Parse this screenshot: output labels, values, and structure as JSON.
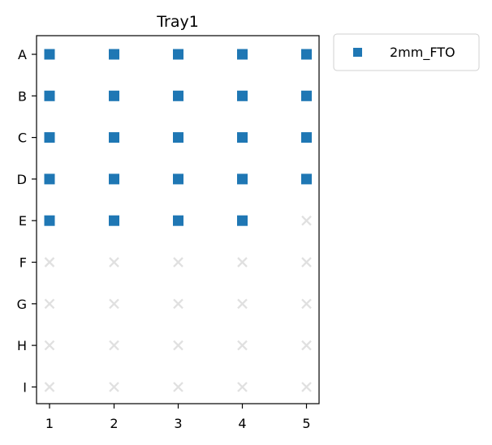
{
  "chart_data": {
    "type": "scatter",
    "title": "Tray1",
    "xlabel": "",
    "ylabel": "",
    "x_ticks": [
      "1",
      "2",
      "3",
      "4",
      "5"
    ],
    "y_ticks": [
      "A",
      "B",
      "C",
      "D",
      "E",
      "F",
      "G",
      "H",
      "I"
    ],
    "xlim": [
      0.83,
      5.2
    ],
    "grid": false,
    "legend_position": "outside-top-right",
    "series": [
      {
        "name": "2mm_FTO",
        "marker": "square",
        "color": "#1f77b4",
        "points": [
          {
            "x": 1,
            "y": "A"
          },
          {
            "x": 2,
            "y": "A"
          },
          {
            "x": 3,
            "y": "A"
          },
          {
            "x": 4,
            "y": "A"
          },
          {
            "x": 5,
            "y": "A"
          },
          {
            "x": 1,
            "y": "B"
          },
          {
            "x": 2,
            "y": "B"
          },
          {
            "x": 3,
            "y": "B"
          },
          {
            "x": 4,
            "y": "B"
          },
          {
            "x": 5,
            "y": "B"
          },
          {
            "x": 1,
            "y": "C"
          },
          {
            "x": 2,
            "y": "C"
          },
          {
            "x": 3,
            "y": "C"
          },
          {
            "x": 4,
            "y": "C"
          },
          {
            "x": 5,
            "y": "C"
          },
          {
            "x": 1,
            "y": "D"
          },
          {
            "x": 2,
            "y": "D"
          },
          {
            "x": 3,
            "y": "D"
          },
          {
            "x": 4,
            "y": "D"
          },
          {
            "x": 5,
            "y": "D"
          },
          {
            "x": 1,
            "y": "E"
          },
          {
            "x": 2,
            "y": "E"
          },
          {
            "x": 3,
            "y": "E"
          },
          {
            "x": 4,
            "y": "E"
          }
        ]
      },
      {
        "marker": "x",
        "color": "#e0e0e0",
        "points": [
          {
            "x": 5,
            "y": "E"
          },
          {
            "x": 1,
            "y": "F"
          },
          {
            "x": 2,
            "y": "F"
          },
          {
            "x": 3,
            "y": "F"
          },
          {
            "x": 4,
            "y": "F"
          },
          {
            "x": 5,
            "y": "F"
          },
          {
            "x": 1,
            "y": "G"
          },
          {
            "x": 2,
            "y": "G"
          },
          {
            "x": 3,
            "y": "G"
          },
          {
            "x": 4,
            "y": "G"
          },
          {
            "x": 5,
            "y": "G"
          },
          {
            "x": 1,
            "y": "H"
          },
          {
            "x": 2,
            "y": "H"
          },
          {
            "x": 3,
            "y": "H"
          },
          {
            "x": 4,
            "y": "H"
          },
          {
            "x": 5,
            "y": "H"
          },
          {
            "x": 1,
            "y": "I"
          },
          {
            "x": 2,
            "y": "I"
          },
          {
            "x": 3,
            "y": "I"
          },
          {
            "x": 4,
            "y": "I"
          },
          {
            "x": 5,
            "y": "I"
          }
        ]
      }
    ]
  }
}
